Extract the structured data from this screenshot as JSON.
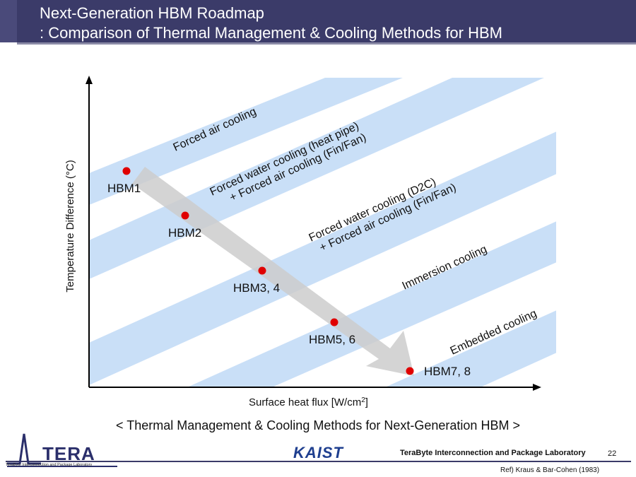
{
  "header": {
    "title_line1": "Next-Generation HBM Roadmap",
    "title_line2": ": Comparison of Thermal Management & Cooling Methods for HBM",
    "bar_color": "#3b3b69"
  },
  "diagram": {
    "y_axis_label": "Temperature Difference (°C)",
    "x_axis_label": "Surface heat flux [W/cm",
    "x_axis_sup": "2",
    "x_axis_close": "]",
    "band_color": "#c9dff7",
    "arrow_color": "#cccccc",
    "point_color": "#e00000",
    "bands": [
      {
        "lines": [
          "Forced air cooling"
        ]
      },
      {
        "lines": [
          "Forced water cooling (heat pipe)",
          "+ Forced air cooling (Fin/Fan)"
        ]
      },
      {
        "lines": [
          "Forced water cooling (D2C)",
          "+ Forced air cooling (Fin/Fan)"
        ]
      },
      {
        "lines": [
          "Immersion cooling"
        ]
      },
      {
        "lines": [
          "Embedded cooling"
        ]
      }
    ],
    "points": [
      {
        "label": "HBM1"
      },
      {
        "label": "HBM2"
      },
      {
        "label": "HBM3, 4"
      },
      {
        "label": "HBM5, 6"
      },
      {
        "label": "HBM7, 8"
      }
    ]
  },
  "caption": "< Thermal Management & Cooling Methods for Next-Generation HBM >",
  "footer": {
    "tera_logo_text": "TERA",
    "tera_sub": "TeraByte Interconnection and Package Laboratory",
    "kaist_logo_text": "KAIST",
    "lab_name": "TeraByte Interconnection and Package Laboratory",
    "page_number": "22",
    "reference": "Ref) Kraus & Bar-Cohen (1983)"
  }
}
